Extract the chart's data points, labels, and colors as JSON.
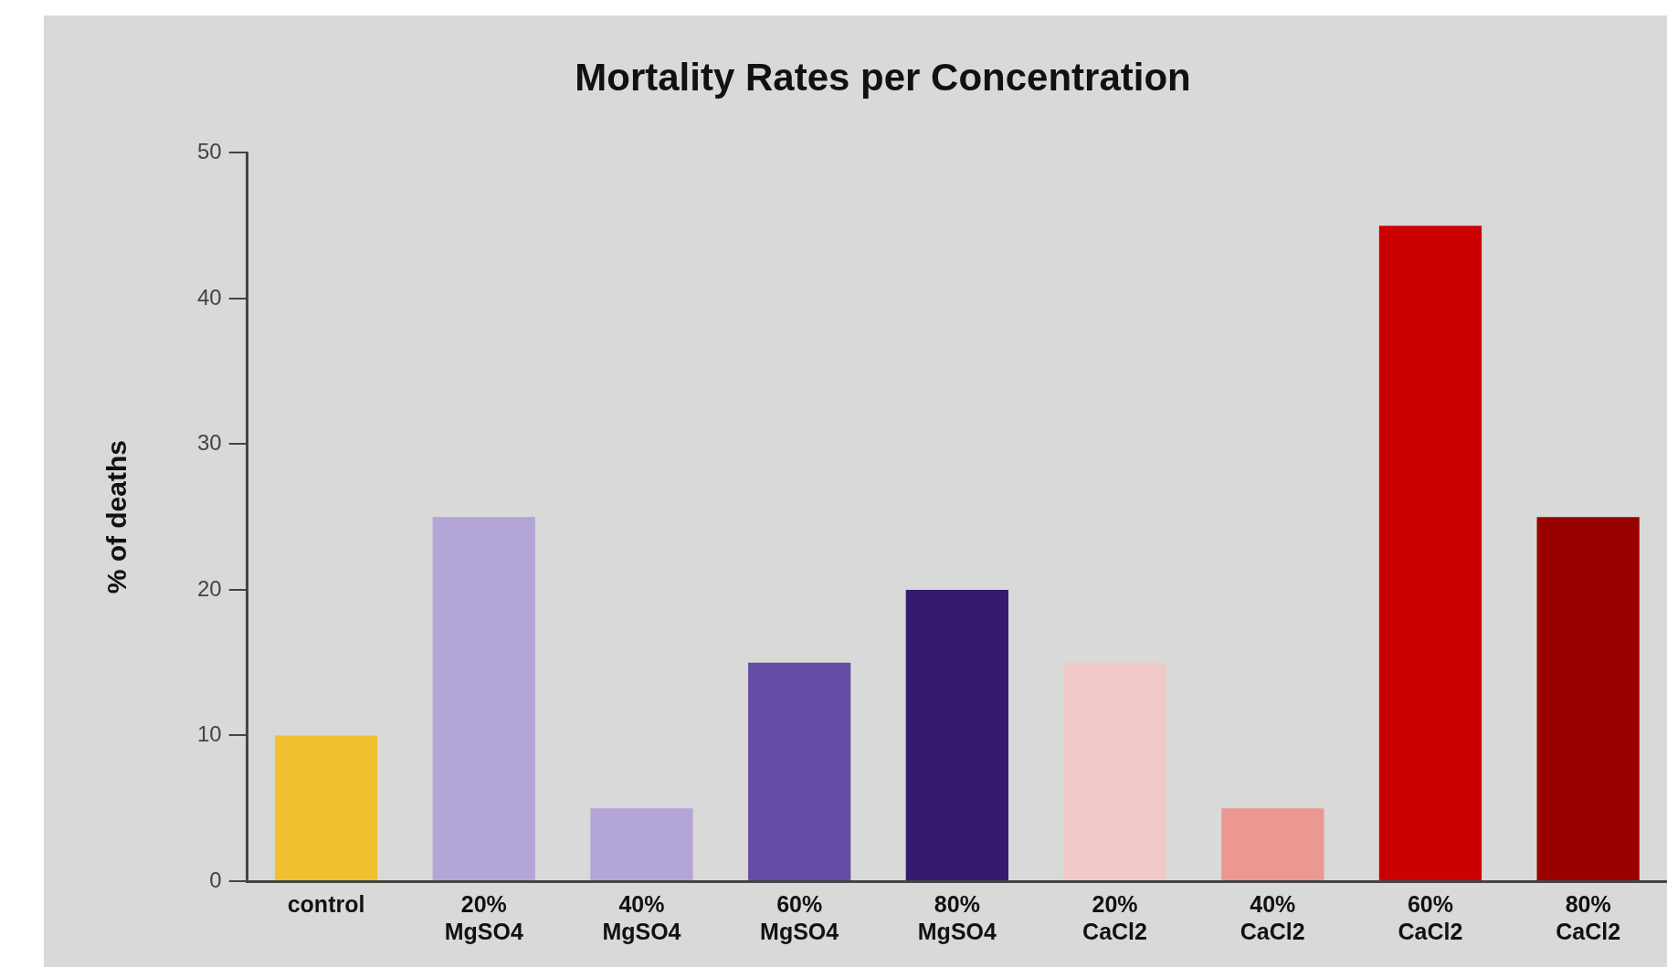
{
  "chart_data": {
    "type": "bar",
    "title": "Mortality Rates per Concentration",
    "ylabel": "% of deaths",
    "categories": [
      "control",
      "20% MgSO4",
      "40% MgSO4",
      "60% MgSO4",
      "80% MgSO4",
      "20% CaCl2",
      "40% CaCl2",
      "60% CaCl2",
      "80% CaCl2"
    ],
    "values": [
      10,
      25,
      5,
      15,
      20,
      15,
      5,
      45,
      25
    ],
    "colors": [
      "#f0c030",
      "#b3a5d5",
      "#b3a5d5",
      "#654ca5",
      "#341a70",
      "#f2c9c9",
      "#eb9893",
      "#cc0000",
      "#990000"
    ],
    "ylim": [
      0,
      50
    ],
    "yticks": [
      0,
      10,
      20,
      30,
      40,
      50
    ],
    "grid": false,
    "legend": false
  }
}
